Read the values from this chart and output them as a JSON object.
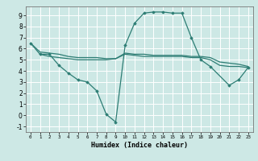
{
  "title": "",
  "xlabel": "Humidex (Indice chaleur)",
  "xlim": [
    -0.5,
    23.5
  ],
  "ylim": [
    -1.5,
    9.8
  ],
  "xticks": [
    0,
    1,
    2,
    3,
    4,
    5,
    6,
    7,
    8,
    9,
    10,
    11,
    12,
    13,
    14,
    15,
    16,
    17,
    18,
    19,
    20,
    21,
    22,
    23
  ],
  "yticks": [
    -1,
    0,
    1,
    2,
    3,
    4,
    5,
    6,
    7,
    8,
    9
  ],
  "bg_color": "#cde8e5",
  "line_color": "#2d7d74",
  "grid_color": "#ffffff",
  "main_x": [
    0,
    1,
    2,
    3,
    4,
    5,
    6,
    7,
    8,
    9,
    10,
    11,
    12,
    13,
    14,
    15,
    16,
    17,
    18,
    19,
    21,
    22,
    23
  ],
  "main_y": [
    6.5,
    5.5,
    5.5,
    4.5,
    3.8,
    3.2,
    3.0,
    2.2,
    0.1,
    -0.6,
    6.3,
    8.3,
    9.2,
    9.3,
    9.3,
    9.2,
    9.2,
    7.0,
    5.0,
    4.4,
    2.7,
    3.2,
    4.3
  ],
  "upper_x": [
    0,
    1,
    2,
    3,
    4,
    5,
    6,
    7,
    8,
    9,
    10,
    11,
    12,
    13,
    14,
    15,
    16,
    17,
    18,
    19,
    20,
    21,
    22,
    23
  ],
  "upper_y": [
    6.5,
    5.7,
    5.6,
    5.5,
    5.3,
    5.2,
    5.2,
    5.2,
    5.1,
    5.1,
    5.6,
    5.5,
    5.5,
    5.4,
    5.4,
    5.4,
    5.4,
    5.3,
    5.3,
    5.2,
    4.8,
    4.7,
    4.6,
    4.4
  ],
  "lower_x": [
    1,
    2,
    3,
    4,
    5,
    6,
    7,
    8,
    9,
    10,
    11,
    12,
    13,
    14,
    15,
    16,
    17,
    18,
    19,
    20,
    21,
    22,
    23
  ],
  "lower_y": [
    5.5,
    5.3,
    5.2,
    5.1,
    5.0,
    5.0,
    5.0,
    5.0,
    5.1,
    5.5,
    5.4,
    5.3,
    5.3,
    5.3,
    5.3,
    5.3,
    5.2,
    5.2,
    5.0,
    4.5,
    4.4,
    4.4,
    4.3
  ]
}
